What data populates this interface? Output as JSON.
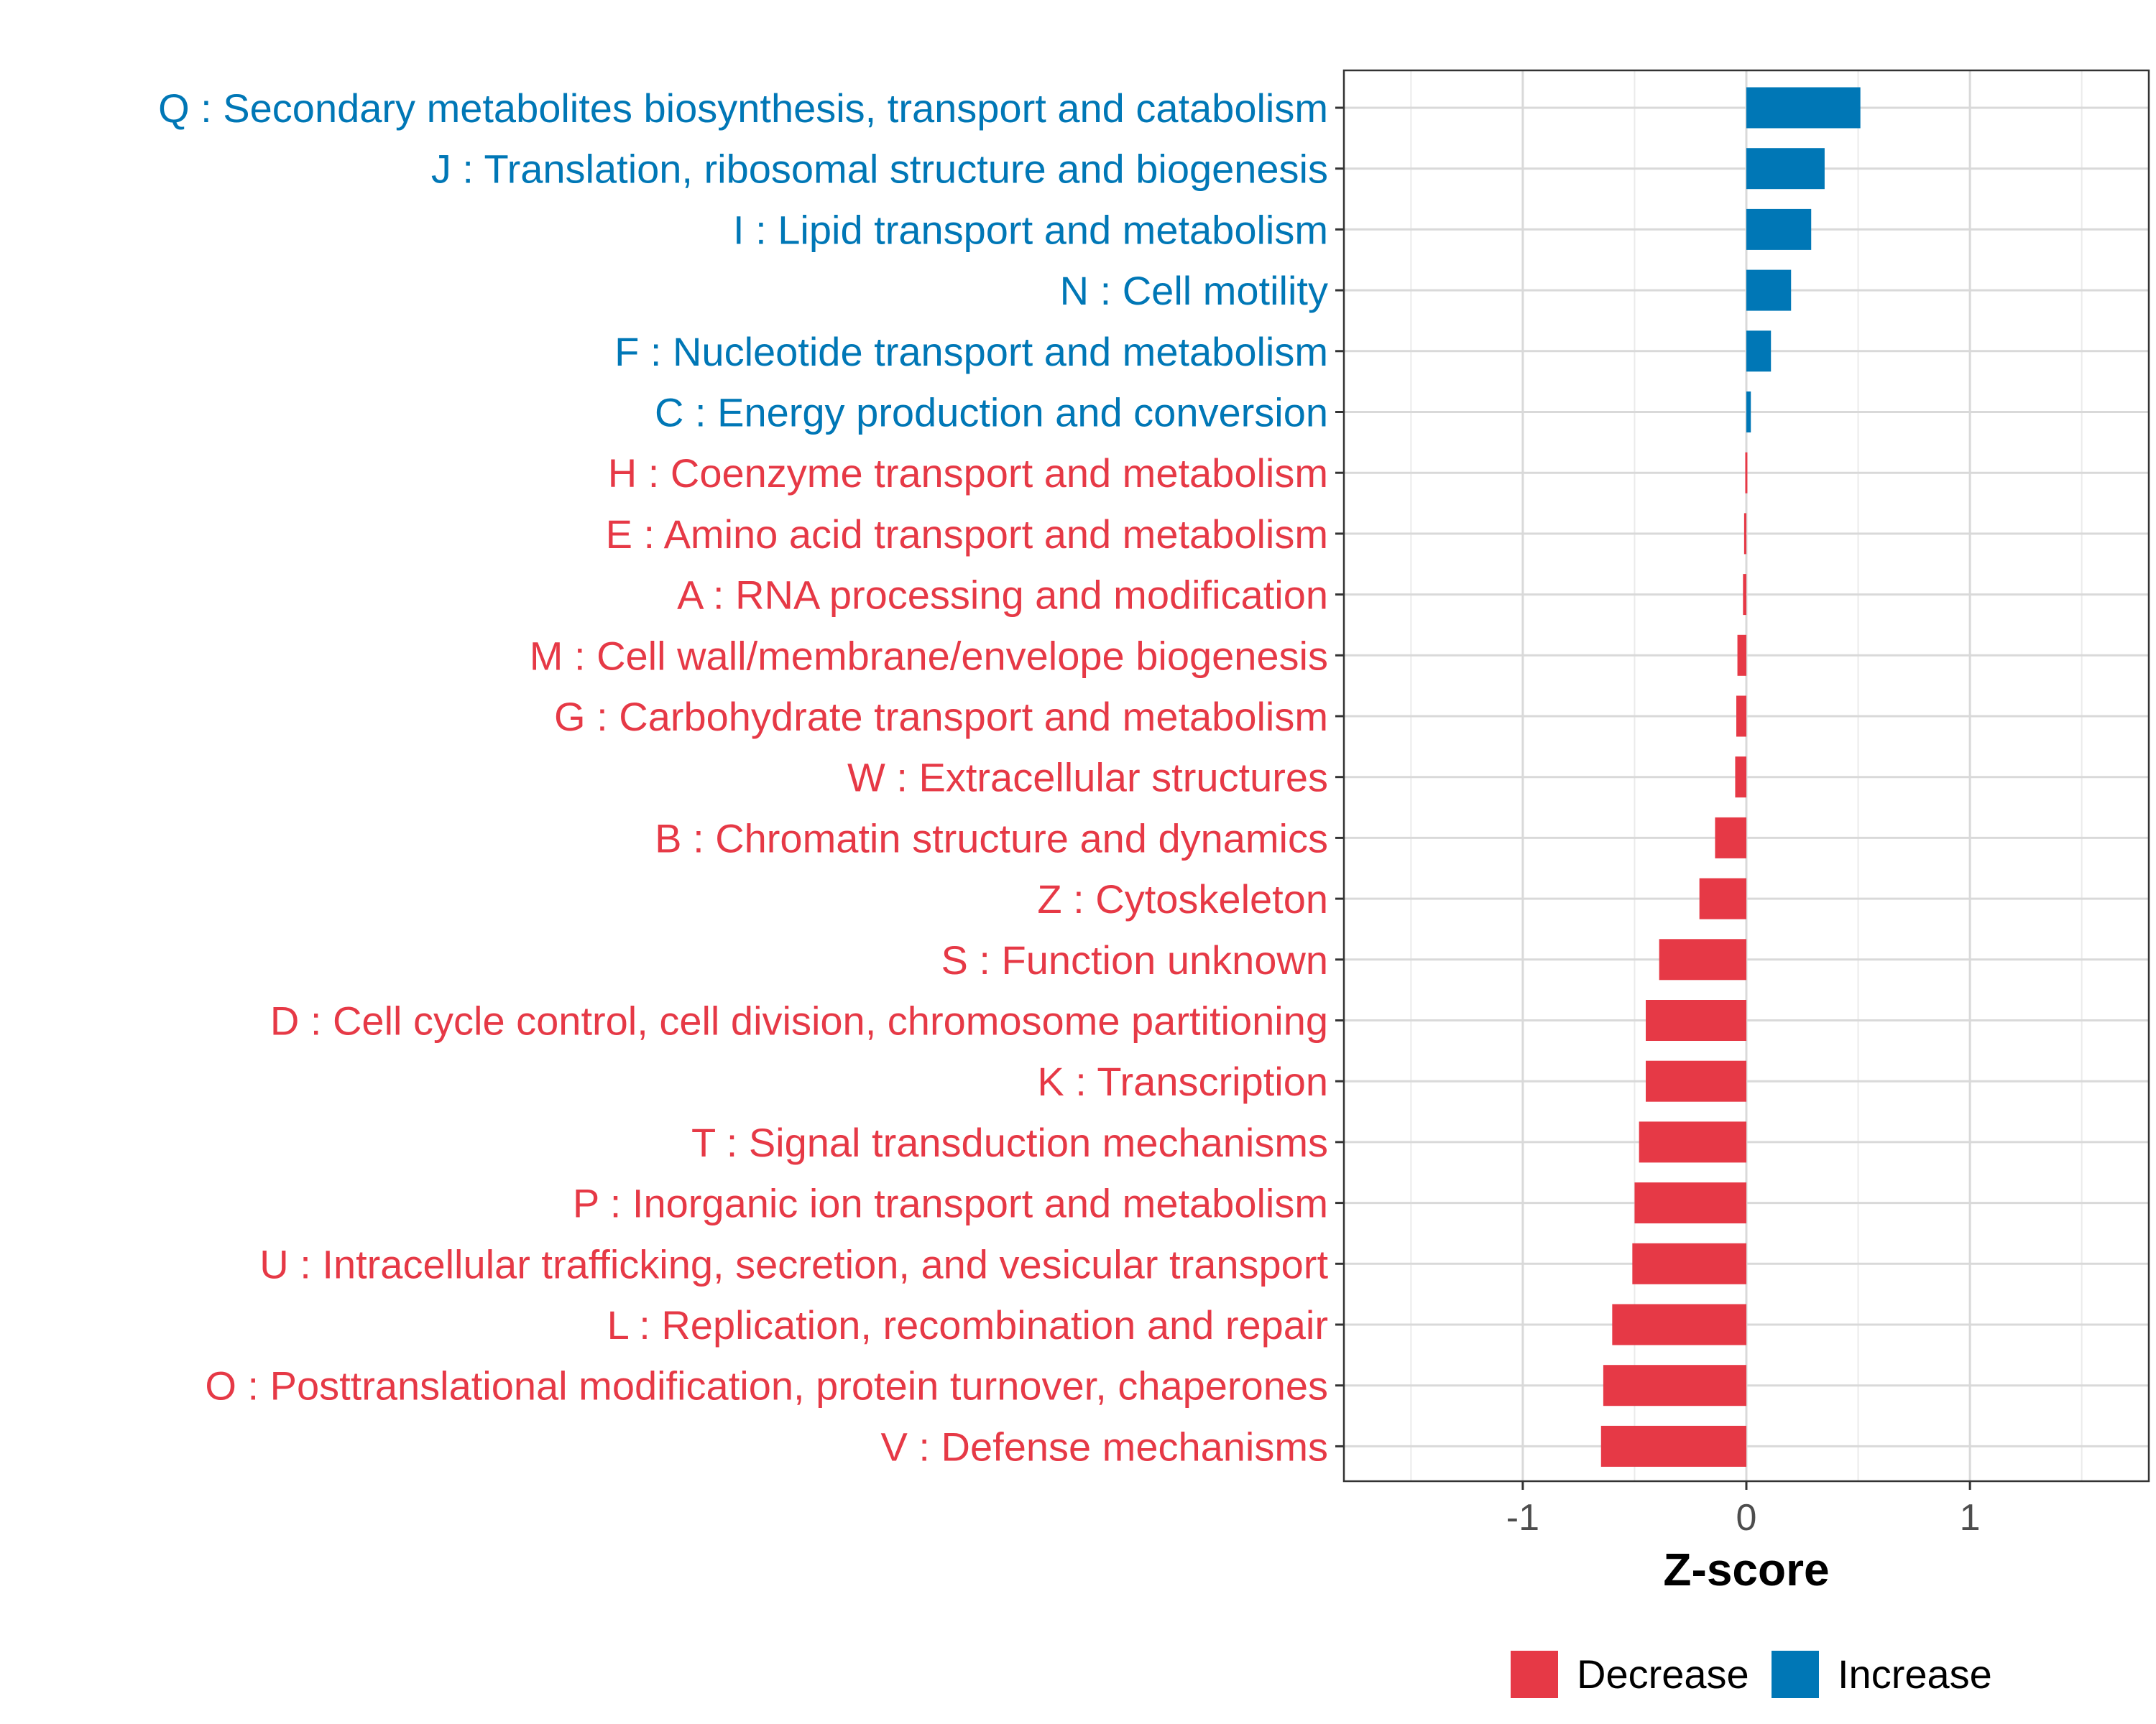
{
  "chart_data": {
    "type": "bar",
    "orientation": "horizontal",
    "xlabel": "Z-score",
    "ylabel": "",
    "xlim": [
      -1.8,
      1.8
    ],
    "xticks": [
      -1,
      0,
      1
    ],
    "xtick_labels": [
      "-1",
      "0",
      "1"
    ],
    "grid": true,
    "legend_position": "bottom",
    "colors": {
      "Decrease": "#e63946",
      "Increase": "#0077b6"
    },
    "legend": [
      {
        "label": "Decrease",
        "color": "#e63946"
      },
      {
        "label": "Increase",
        "color": "#0077b6"
      }
    ],
    "categories": [
      "Q : Secondary metabolites biosynthesis, transport and catabolism",
      "J : Translation, ribosomal structure and biogenesis",
      "I : Lipid transport and metabolism",
      "N : Cell motility",
      "F : Nucleotide transport and metabolism",
      "C : Energy production and conversion",
      "H : Coenzyme transport and metabolism",
      "E : Amino acid transport and metabolism",
      "A : RNA processing and modification",
      "M : Cell wall/membrane/envelope biogenesis",
      "G : Carbohydrate transport and metabolism",
      "W : Extracellular structures",
      "B : Chromatin structure and dynamics",
      "Z : Cytoskeleton",
      "S : Function unknown",
      "D : Cell cycle control, cell division, chromosome partitioning",
      "K : Transcription",
      "T : Signal transduction mechanisms",
      "P : Inorganic ion transport and metabolism",
      "U : Intracellular trafficking, secretion, and vesicular transport",
      "L : Replication, recombination and repair",
      "O : Posttranslational modification, protein turnover, chaperones",
      "V : Defense mechanisms"
    ],
    "values": [
      0.51,
      0.35,
      0.29,
      0.2,
      0.11,
      0.02,
      -0.005,
      -0.01,
      -0.015,
      -0.04,
      -0.045,
      -0.05,
      -0.14,
      -0.21,
      -0.39,
      -0.45,
      -0.45,
      -0.48,
      -0.5,
      -0.51,
      -0.6,
      -0.64,
      -0.65
    ],
    "direction": [
      "Increase",
      "Increase",
      "Increase",
      "Increase",
      "Increase",
      "Increase",
      "Decrease",
      "Decrease",
      "Decrease",
      "Decrease",
      "Decrease",
      "Decrease",
      "Decrease",
      "Decrease",
      "Decrease",
      "Decrease",
      "Decrease",
      "Decrease",
      "Decrease",
      "Decrease",
      "Decrease",
      "Decrease",
      "Decrease"
    ]
  }
}
